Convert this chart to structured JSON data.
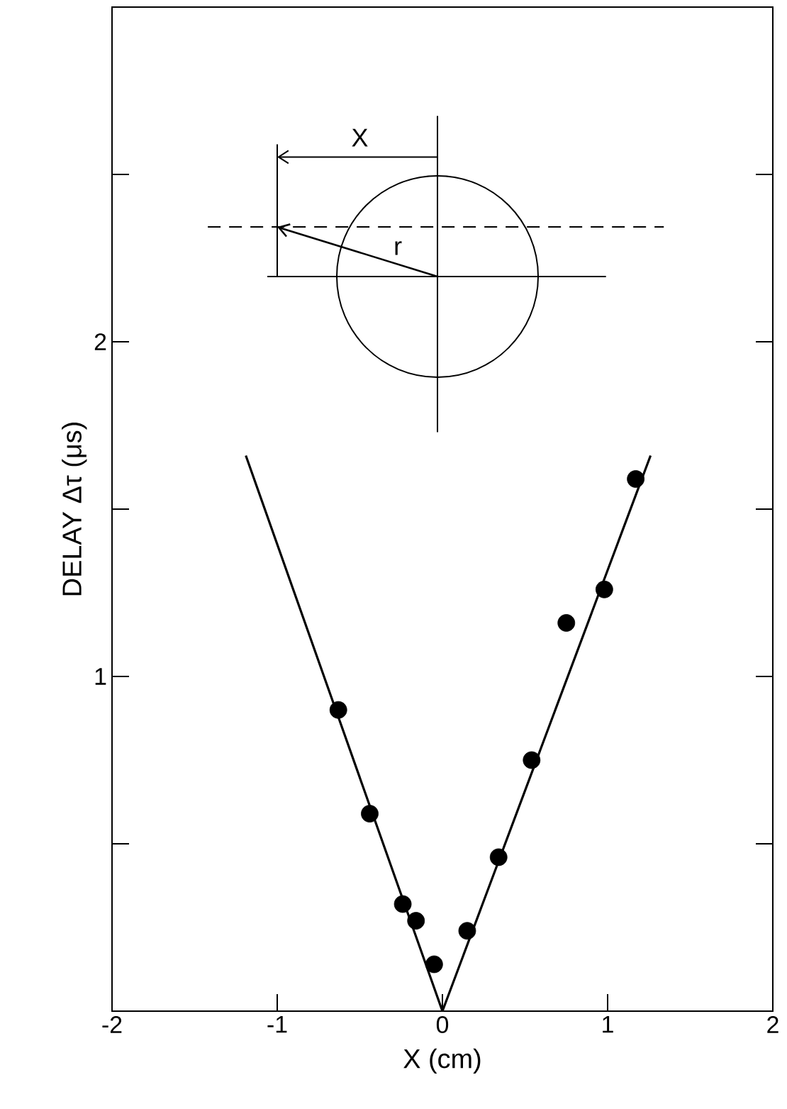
{
  "chart_data": {
    "type": "scatter",
    "xlabel": "X (cm)",
    "ylabel": "DELAY Δτ (μs)",
    "xlim": [
      -2,
      2
    ],
    "ylim": [
      0,
      3
    ],
    "xticks": [
      -2,
      -1,
      0,
      1,
      2
    ],
    "yticks": [
      {
        "value": 0,
        "label": null
      },
      {
        "value": 0.5,
        "label": null
      },
      1,
      {
        "value": 1.5,
        "label": null
      },
      2,
      {
        "value": 2.5,
        "label": null
      }
    ],
    "series": [
      {
        "color": "#000000",
        "marker": "circle",
        "x": [
          -0.63,
          -0.44,
          -0.24,
          -0.16,
          -0.05,
          0.15,
          0.34,
          0.54,
          0.75,
          0.98,
          1.17
        ],
        "values": [
          0.9,
          0.59,
          0.32,
          0.27,
          0.14,
          0.24,
          0.46,
          0.75,
          1.16,
          1.26,
          1.59
        ]
      },
      {
        "type": "line",
        "color": "#000000",
        "marker": "none",
        "line_style": "solid",
        "x": [
          -1.19,
          0
        ],
        "values": [
          1.66,
          0
        ]
      },
      {
        "type": "line",
        "color": "#000000",
        "marker": "none",
        "line_style": "solid",
        "x": [
          0,
          1.26
        ],
        "values": [
          0,
          1.66
        ]
      }
    ],
    "annotations": [
      "X",
      "r"
    ]
  }
}
